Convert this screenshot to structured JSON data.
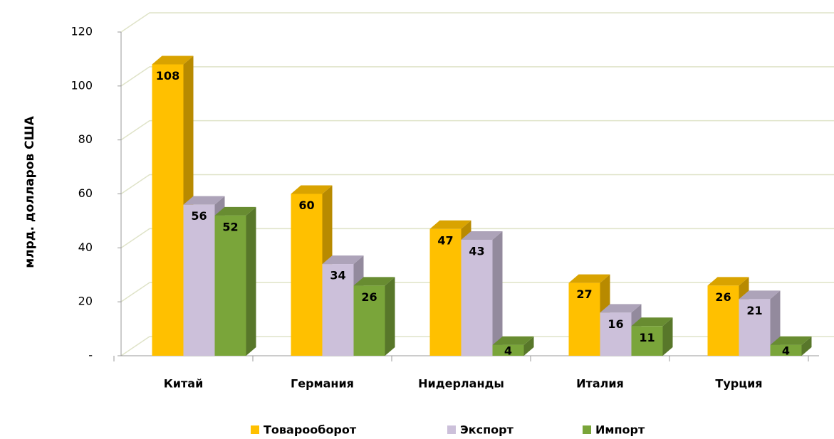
{
  "chart_data": {
    "type": "bar3d",
    "y_label": "млрд. долларов США",
    "categories": [
      "Китай",
      "Германия",
      "Нидерланды",
      "Италия",
      "Турция"
    ],
    "series": [
      {
        "name": "Товарооборот",
        "color": "#ffc000",
        "values": [
          108,
          60,
          47,
          27,
          26
        ]
      },
      {
        "name": "Экспорт",
        "color": "#ccc0da",
        "values": [
          56,
          34,
          43,
          16,
          21
        ]
      },
      {
        "name": "Импорт",
        "color": "#7aa53a",
        "values": [
          52,
          26,
          4,
          11,
          4
        ]
      }
    ],
    "ylim": [
      0,
      120
    ],
    "yticks": [
      {
        "value": 0,
        "label": "-"
      },
      20,
      40,
      60,
      80,
      100,
      120
    ],
    "grid": true,
    "legend": "bottom"
  }
}
